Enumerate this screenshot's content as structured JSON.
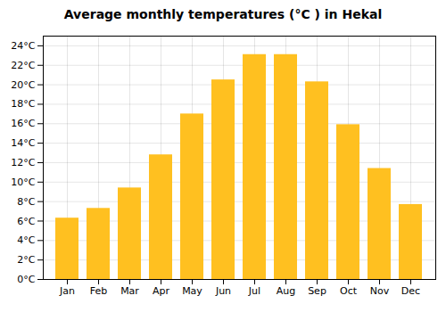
{
  "chart_data": {
    "type": "bar",
    "title": "Average monthly temperatures (°C ) in Hekal",
    "categories": [
      "Jan",
      "Feb",
      "Mar",
      "Apr",
      "May",
      "Jun",
      "Jul",
      "Aug",
      "Sep",
      "Oct",
      "Nov",
      "Dec"
    ],
    "values": [
      6.3,
      7.3,
      9.4,
      12.8,
      17.0,
      20.5,
      23.1,
      23.1,
      20.3,
      15.9,
      11.4,
      7.7
    ],
    "color": "#FFC020",
    "ylim": [
      0,
      25
    ],
    "yticks": [
      {
        "value": 0,
        "label": "0°C"
      },
      {
        "value": 2,
        "label": "2°C"
      },
      {
        "value": 4,
        "label": "4°C"
      },
      {
        "value": 6,
        "label": "6°C"
      },
      {
        "value": 8,
        "label": "8°C"
      },
      {
        "value": 10,
        "label": "10°C"
      },
      {
        "value": 12,
        "label": "12°C"
      },
      {
        "value": 14,
        "label": "14°C"
      },
      {
        "value": 16,
        "label": "16°C"
      },
      {
        "value": 18,
        "label": "18°C"
      },
      {
        "value": 20,
        "label": "20°C"
      },
      {
        "value": 22,
        "label": "22°C"
      },
      {
        "value": 24,
        "label": "24°C"
      }
    ],
    "grid": true
  }
}
